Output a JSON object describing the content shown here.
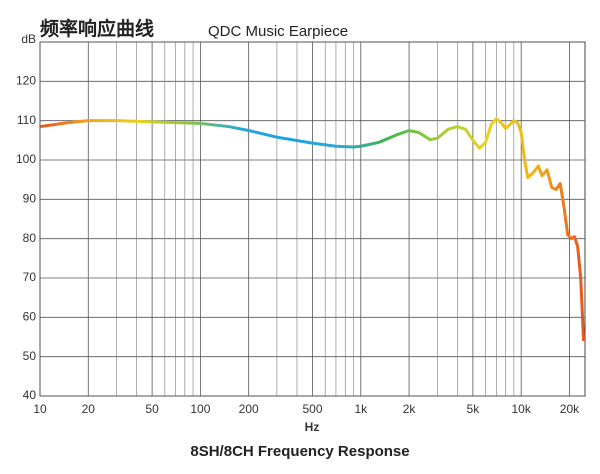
{
  "chart_data": {
    "type": "line",
    "title": "频率响应曲线",
    "subtitle": "QDC Music Earpiece",
    "x_label": "Hz",
    "caption": "8SH/8CH Frequency Response",
    "log_x": true,
    "grid": true,
    "xlim": [
      10,
      25000
    ],
    "ylim": [
      40,
      130
    ],
    "xticks": [
      10,
      20,
      50,
      100,
      200,
      500,
      {
        "value": 1000,
        "label": "1k"
      },
      {
        "value": 2000,
        "label": "2k"
      },
      {
        "value": 5000,
        "label": "5k"
      },
      {
        "value": 10000,
        "label": "10k"
      },
      {
        "value": 20000,
        "label": "20k"
      }
    ],
    "x_minor_ticks": [
      30,
      40,
      60,
      70,
      80,
      90,
      300,
      400,
      600,
      700,
      800,
      900,
      3000,
      4000,
      6000,
      7000,
      8000,
      9000
    ],
    "yticks": [
      40,
      50,
      60,
      70,
      80,
      90,
      100,
      110,
      120,
      {
        "value": 130,
        "label": "dB"
      }
    ],
    "colors": [
      "#e8521f",
      "#f2a51d",
      "#e6d31a",
      "#8cc63f",
      "#2ba8d6",
      "#1f9ee0",
      "#2ba8d6",
      "#3fb34f",
      "#9ccc3a",
      "#ecd21b",
      "#f2b01b",
      "#e8521f"
    ],
    "x": [
      10,
      15,
      20,
      30,
      50,
      70,
      100,
      150,
      200,
      300,
      500,
      700,
      900,
      1000,
      1300,
      1700,
      2000,
      2300,
      2700,
      3000,
      3500,
      4000,
      4500,
      5000,
      5500,
      6000,
      6500,
      7000,
      7500,
      8000,
      8500,
      9000,
      9500,
      10000,
      10500,
      11000,
      12000,
      12800,
      13500,
      14500,
      15500,
      16500,
      17500,
      18500,
      19500,
      20500,
      21500,
      22500,
      23500,
      24500
    ],
    "values": [
      108.5,
      109.5,
      110,
      110,
      109.7,
      109.5,
      109.3,
      108.5,
      107.5,
      105.8,
      104.3,
      103.5,
      103.3,
      103.5,
      104.5,
      106.5,
      107.5,
      107,
      105.2,
      105.5,
      107.8,
      108.5,
      107.8,
      105,
      103,
      104.5,
      109,
      110.5,
      109.5,
      108,
      109,
      110,
      109.5,
      107,
      100,
      95.5,
      97,
      98.5,
      96,
      97.5,
      93,
      92.5,
      94,
      88,
      81,
      80,
      80.5,
      78,
      70,
      54
    ]
  }
}
